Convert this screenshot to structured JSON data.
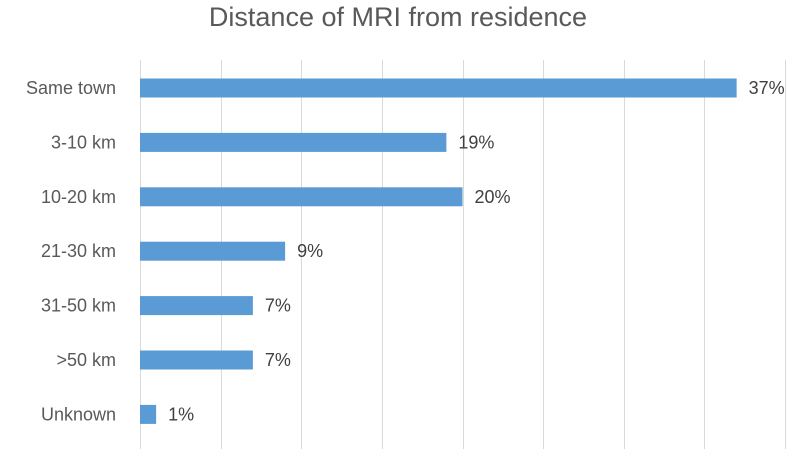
{
  "chart_data": {
    "type": "bar",
    "orientation": "horizontal",
    "title": "Distance of MRI from residence",
    "categories": [
      "Same town",
      "3-10 km",
      "10-20 km",
      "21-30 km",
      "31-50 km",
      ">50 km",
      "Unknown"
    ],
    "values": [
      37,
      19,
      20,
      9,
      7,
      7,
      1
    ],
    "value_labels": [
      "37%",
      "19%",
      "20%",
      "9%",
      "7%",
      "7%",
      "1%"
    ],
    "unit": "%",
    "xlim": [
      0,
      40
    ],
    "grid": true,
    "legend": "none",
    "bar_color": "#5b9bd5",
    "grid_color": "#d9d9d9"
  }
}
